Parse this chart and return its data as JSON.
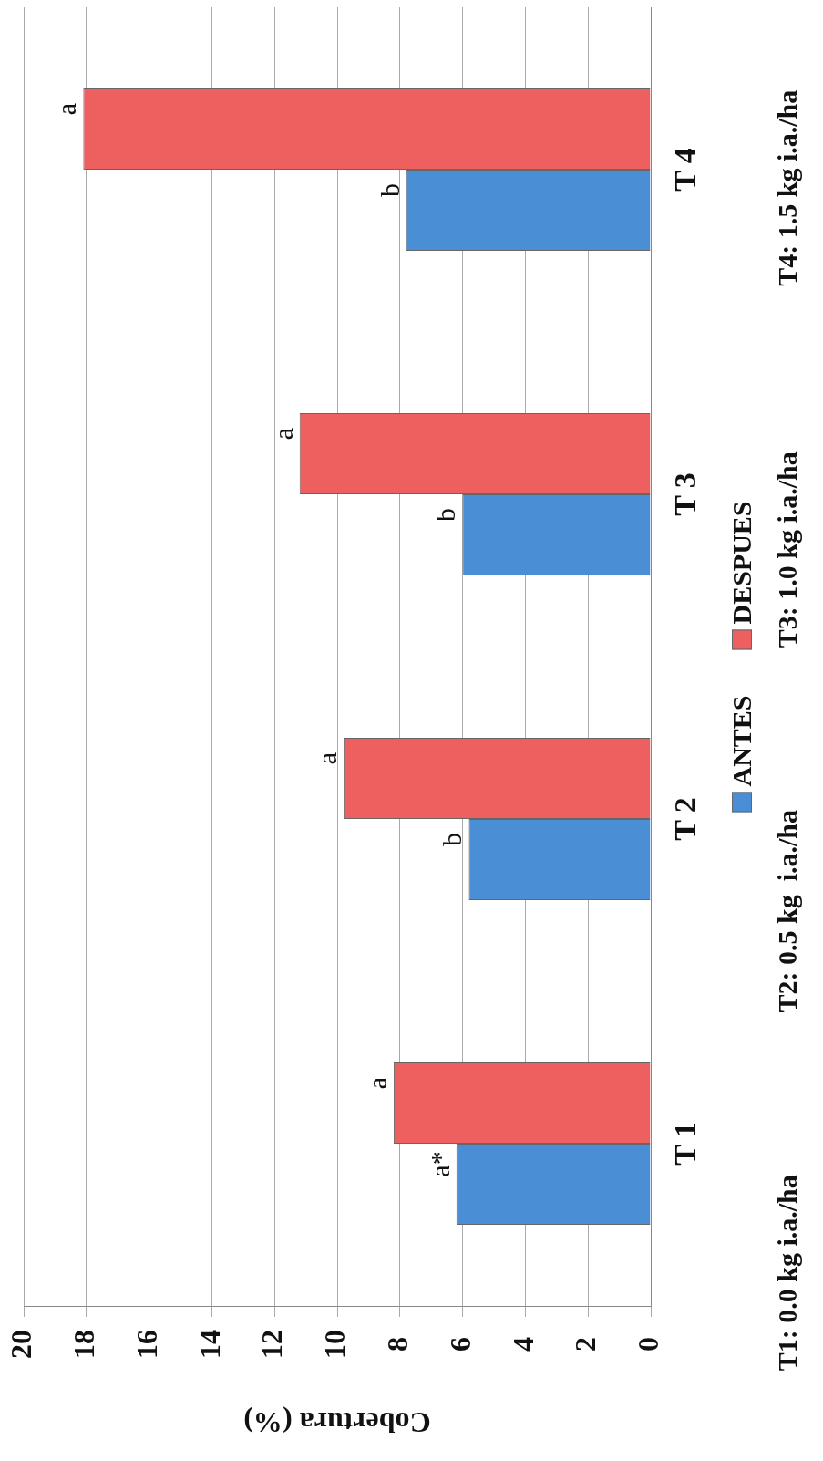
{
  "chart_data": {
    "type": "bar",
    "orientation": "horizontal",
    "xlabel": "Cobertura (%)",
    "categories": [
      "T 4",
      "T 3",
      "T 2",
      "T 1"
    ],
    "series": [
      {
        "name": "ANTES",
        "color": "#4a8fd6",
        "values": [
          7.8,
          6.0,
          5.8,
          6.2
        ]
      },
      {
        "name": "DESPUES",
        "color": "#ee5f5f",
        "values": [
          18.1,
          11.2,
          9.8,
          8.2
        ]
      }
    ],
    "xlim": [
      20,
      0
    ],
    "xticks": [
      0,
      2,
      4,
      6,
      8,
      10,
      12,
      14,
      16,
      18,
      20
    ],
    "grid": "x",
    "legend": "right",
    "annotations": [
      {
        "text": "a*",
        "x": 6.2,
        "y": "T 1"
      },
      {
        "text": "a",
        "x": 8.2,
        "y": "T 1"
      },
      {
        "text": "b",
        "x": 5.8,
        "y": "T 2"
      },
      {
        "text": "a",
        "x": 9.8,
        "y": "T 2"
      },
      {
        "text": "b",
        "x": 6.0,
        "y": "T 3"
      },
      {
        "text": "a",
        "x": 11.2,
        "y": "T 3"
      },
      {
        "text": "b",
        "x": 7.8,
        "y": "T 4"
      },
      {
        "text": "a",
        "x": 18.1,
        "y": "T 4"
      },
      "T1: 0.0 kg i.a./ha",
      "T2: 0.5 kg  i.a./ha",
      "T3: 1.0 kg i.a./ha",
      "T4: 1.5 kg i.a./ha"
    ]
  }
}
